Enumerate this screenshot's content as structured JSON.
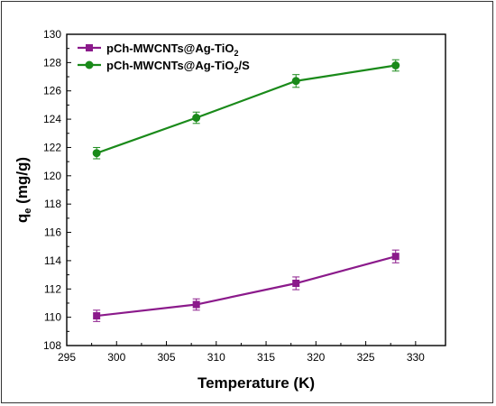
{
  "chart_data": {
    "type": "line",
    "xlabel": "Temperature (K)",
    "ylabel_main": "q",
    "ylabel_sub": "e",
    "ylabel_unit": " (mg/g)",
    "xlim": [
      295,
      333
    ],
    "ylim": [
      108,
      130
    ],
    "xticks": [
      295,
      300,
      305,
      310,
      315,
      320,
      325,
      330
    ],
    "yticks": [
      108,
      110,
      112,
      114,
      116,
      118,
      120,
      122,
      124,
      126,
      128,
      130
    ],
    "legend_position": "top-left",
    "series": [
      {
        "name_main": "pCh-MWCNTs@Ag-TiO",
        "name_sub": "2",
        "name_suffix": "",
        "color": "#8b1a8b",
        "marker": "square",
        "x": [
          298,
          308,
          318,
          328
        ],
        "y": [
          110.1,
          110.9,
          112.4,
          114.3
        ],
        "err": [
          0.4,
          0.4,
          0.45,
          0.45
        ]
      },
      {
        "name_main": "pCh-MWCNTs@Ag-TiO",
        "name_sub": "2",
        "name_suffix": "/S",
        "color": "#1a8a1a",
        "marker": "circle",
        "x": [
          298,
          308,
          318,
          328
        ],
        "y": [
          121.6,
          124.1,
          126.7,
          127.8
        ],
        "err": [
          0.4,
          0.4,
          0.45,
          0.4
        ]
      }
    ]
  }
}
